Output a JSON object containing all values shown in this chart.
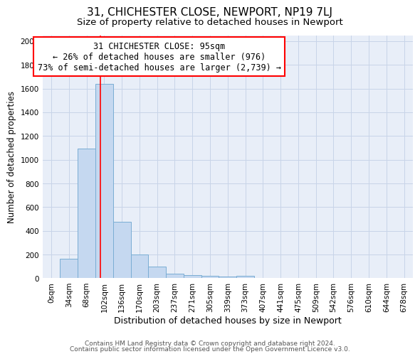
{
  "title": "31, CHICHESTER CLOSE, NEWPORT, NP19 7LJ",
  "subtitle": "Size of property relative to detached houses in Newport",
  "xlabel": "Distribution of detached houses by size in Newport",
  "ylabel": "Number of detached properties",
  "footer_line1": "Contains HM Land Registry data © Crown copyright and database right 2024.",
  "footer_line2": "Contains public sector information licensed under the Open Government Licence v3.0.",
  "bar_labels": [
    "0sqm",
    "34sqm",
    "68sqm",
    "102sqm",
    "136sqm",
    "170sqm",
    "203sqm",
    "237sqm",
    "271sqm",
    "305sqm",
    "339sqm",
    "373sqm",
    "407sqm",
    "441sqm",
    "475sqm",
    "509sqm",
    "542sqm",
    "576sqm",
    "610sqm",
    "644sqm",
    "678sqm"
  ],
  "bar_values": [
    0,
    165,
    1095,
    1640,
    475,
    200,
    100,
    40,
    25,
    20,
    15,
    20,
    0,
    0,
    0,
    0,
    0,
    0,
    0,
    0,
    0
  ],
  "bar_color": "#c5d8f0",
  "bar_edge_color": "#7aadd4",
  "annotation_line1": "31 CHICHESTER CLOSE: 95sqm",
  "annotation_line2": "← 26% of detached houses are smaller (976)",
  "annotation_line3": "73% of semi-detached houses are larger (2,739) →",
  "ylim": [
    0,
    2050
  ],
  "yticks": [
    0,
    200,
    400,
    600,
    800,
    1000,
    1200,
    1400,
    1600,
    1800,
    2000
  ],
  "grid_color": "#c8d4e8",
  "bg_color": "#e8eef8",
  "title_fontsize": 11,
  "subtitle_fontsize": 9.5,
  "xlabel_fontsize": 9,
  "ylabel_fontsize": 8.5,
  "tick_fontsize": 7.5,
  "annotation_fontsize": 8.5,
  "footer_fontsize": 6.5,
  "bin_width": 34,
  "property_sqm": 95
}
